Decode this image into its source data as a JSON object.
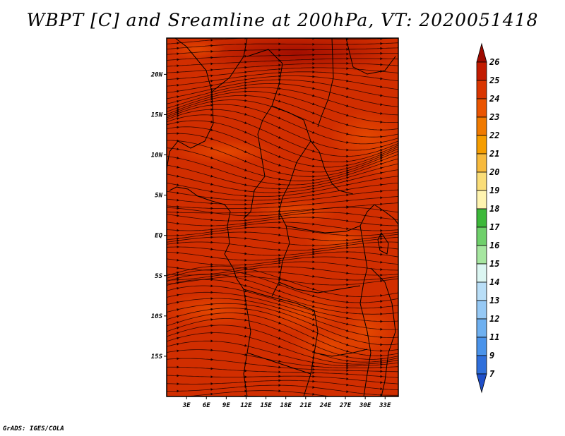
{
  "chart_data": {
    "type": "heatmap",
    "title": "WBPT [C] and Sreamline at 200hPa, VT: 2020051418",
    "variable": "WBPT [C]",
    "overlay": "streamlines at 200hPa",
    "valid_time": "2020051418",
    "x_ticks": [
      "3E",
      "6E",
      "9E",
      "12E",
      "15E",
      "18E",
      "21E",
      "24E",
      "27E",
      "30E",
      "33E"
    ],
    "x_tick_values": [
      3,
      6,
      9,
      12,
      15,
      18,
      21,
      24,
      27,
      30,
      33
    ],
    "y_ticks": [
      "20N",
      "15N",
      "10N",
      "5N",
      "EQ",
      "5S",
      "10S",
      "15S"
    ],
    "y_tick_values": [
      20,
      15,
      10,
      5,
      0,
      -5,
      -10,
      -15
    ],
    "xlim": [
      0,
      35
    ],
    "ylim": [
      -20,
      24.5
    ],
    "dominant_range": [
      23,
      26
    ],
    "colorbar": {
      "levels": [
        "26",
        "25",
        "24",
        "23",
        "22",
        "21",
        "20",
        "19",
        "18",
        "17",
        "16",
        "15",
        "14",
        "13",
        "12",
        "11",
        "9",
        "7"
      ],
      "colors": [
        "#9e0a00",
        "#c21b00",
        "#d93500",
        "#ea5400",
        "#f07a00",
        "#f59d00",
        "#f7ba3d",
        "#fadd78",
        "#fff4b0",
        "#3db83a",
        "#6fd06b",
        "#a6e6a0",
        "#dcf6f2",
        "#b9def7",
        "#96c9f5",
        "#6eb0f0",
        "#4a93ea",
        "#2f6fdb",
        "#1f4fc8"
      ]
    }
  },
  "footer": {
    "credit": "GrADS: IGES/COLA"
  }
}
